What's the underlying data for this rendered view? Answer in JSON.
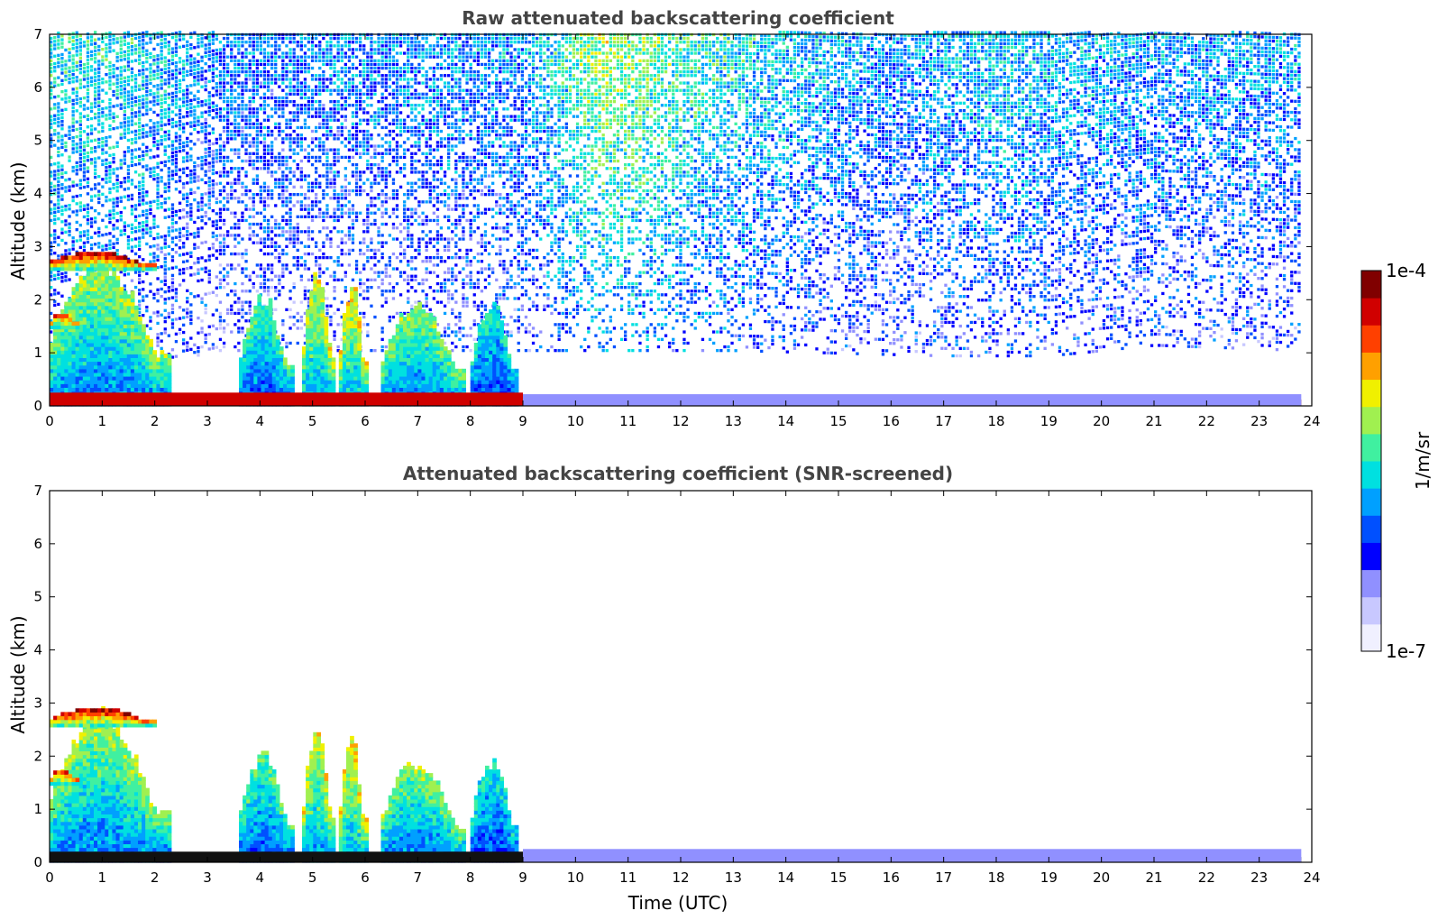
{
  "chart_data": [
    {
      "type": "heatmap",
      "title": "Raw attenuated backscattering coefficient",
      "xlabel": "",
      "ylabel": "Altitude (km)",
      "xlim": [
        0,
        24
      ],
      "ylim": [
        0,
        7
      ],
      "xticks": [
        "0",
        "1",
        "2",
        "3",
        "4",
        "5",
        "6",
        "7",
        "8",
        "9",
        "10",
        "11",
        "12",
        "13",
        "14",
        "15",
        "16",
        "17",
        "18",
        "19",
        "20",
        "21",
        "22",
        "23",
        "24"
      ],
      "yticks": [
        "0",
        "1",
        "2",
        "3",
        "4",
        "5",
        "6",
        "7"
      ],
      "field": {
        "noise_ceiling_km": 7.0,
        "noise_floor_km": [
          [
            0,
            0.3
          ],
          [
            3.2,
            1.0
          ],
          [
            9,
            1.0
          ],
          [
            13,
            1.0
          ],
          [
            17,
            0.9
          ],
          [
            19,
            0.9
          ],
          [
            21,
            1.1
          ],
          [
            23.8,
            1.0
          ]
        ],
        "noise_level": [
          [
            0,
            0.5
          ],
          [
            2,
            0.45
          ],
          [
            3,
            0.35
          ],
          [
            9,
            0.4
          ],
          [
            10.5,
            0.62
          ],
          [
            12.5,
            0.5
          ],
          [
            16,
            0.38
          ],
          [
            18,
            0.45
          ],
          [
            19.2,
            0.42
          ],
          [
            21,
            0.4
          ],
          [
            23.8,
            0.4
          ]
        ],
        "clouds": [
          {
            "t0": 0.0,
            "t1": 2.3,
            "base_km": 0.0,
            "top_km": 2.9,
            "level": 0.62
          },
          {
            "t0": 0.0,
            "t1": 2.0,
            "base_km": 2.55,
            "top_km": 2.9,
            "level": 0.95
          },
          {
            "t0": 0.0,
            "t1": 0.5,
            "base_km": 1.45,
            "top_km": 1.75,
            "level": 0.88
          },
          {
            "t0": 3.6,
            "t1": 4.6,
            "base_km": 0.0,
            "top_km": 2.15,
            "level": 0.55
          },
          {
            "t0": 4.8,
            "t1": 5.4,
            "base_km": 0.0,
            "top_km": 2.6,
            "level": 0.68
          },
          {
            "t0": 5.5,
            "t1": 6.0,
            "base_km": 0.0,
            "top_km": 2.45,
            "level": 0.7
          },
          {
            "t0": 6.3,
            "t1": 7.9,
            "base_km": 0.0,
            "top_km": 2.0,
            "level": 0.6
          },
          {
            "t0": 8.0,
            "t1": 8.9,
            "base_km": 0.0,
            "top_km": 2.0,
            "level": 0.5
          }
        ],
        "surface_layer": [
          {
            "t0": 0.0,
            "t1": 9.0,
            "top_km": 0.25,
            "level": 0.9
          },
          {
            "t0": 9.0,
            "t1": 23.8,
            "top_km": 0.12,
            "level": 0.97
          },
          {
            "t0": 9.0,
            "t1": 23.8,
            "top_km": 0.22,
            "level": 0.2
          }
        ]
      }
    },
    {
      "type": "heatmap",
      "title": "Attenuated backscattering coefficient (SNR-screened)",
      "xlabel": "Time (UTC)",
      "ylabel": "Altitude (km)",
      "xlim": [
        0,
        24
      ],
      "ylim": [
        0,
        7
      ],
      "xticks": [
        "0",
        "1",
        "2",
        "3",
        "4",
        "5",
        "6",
        "7",
        "8",
        "9",
        "10",
        "11",
        "12",
        "13",
        "14",
        "15",
        "16",
        "17",
        "18",
        "19",
        "20",
        "21",
        "22",
        "23",
        "24"
      ],
      "yticks": [
        "0",
        "1",
        "2",
        "3",
        "4",
        "5",
        "6",
        "7"
      ],
      "field": {
        "clouds": [
          {
            "t0": 0.0,
            "t1": 2.3,
            "base_km": 0.0,
            "top_km": 2.9,
            "level": 0.62
          },
          {
            "t0": 0.0,
            "t1": 2.0,
            "base_km": 2.55,
            "top_km": 2.9,
            "level": 0.95
          },
          {
            "t0": 0.0,
            "t1": 0.5,
            "base_km": 1.45,
            "top_km": 1.75,
            "level": 0.88
          },
          {
            "t0": 3.6,
            "t1": 4.6,
            "base_km": 0.0,
            "top_km": 2.15,
            "level": 0.55
          },
          {
            "t0": 4.8,
            "t1": 5.4,
            "base_km": 0.0,
            "top_km": 2.6,
            "level": 0.68
          },
          {
            "t0": 5.5,
            "t1": 6.0,
            "base_km": 0.0,
            "top_km": 2.45,
            "level": 0.7
          },
          {
            "t0": 6.3,
            "t1": 7.9,
            "base_km": 0.0,
            "top_km": 2.0,
            "level": 0.6
          },
          {
            "t0": 8.0,
            "t1": 8.9,
            "base_km": 0.0,
            "top_km": 2.0,
            "level": 0.5
          }
        ],
        "surface_layer": [
          {
            "t0": 0.0,
            "t1": 9.0,
            "top_km": 0.2,
            "level": 1.0
          },
          {
            "t0": 9.0,
            "t1": 23.8,
            "top_km": 0.1,
            "level": 1.0
          },
          {
            "t0": 9.0,
            "t1": 23.8,
            "top_km": 0.25,
            "level": 0.18
          }
        ]
      }
    }
  ],
  "colorbar": {
    "label": "1/m/sr",
    "min_label": "1e-7",
    "max_label": "1e-4",
    "min": 1e-07,
    "max": 0.0001,
    "scale": "log",
    "colors": [
      "#f0f0ff",
      "#c8c8ff",
      "#9090ff",
      "#0000ff",
      "#0050ff",
      "#00a0ff",
      "#00e0e0",
      "#40f0a0",
      "#a0f050",
      "#f0f000",
      "#ffa000",
      "#ff4000",
      "#d00000",
      "#800000"
    ]
  }
}
